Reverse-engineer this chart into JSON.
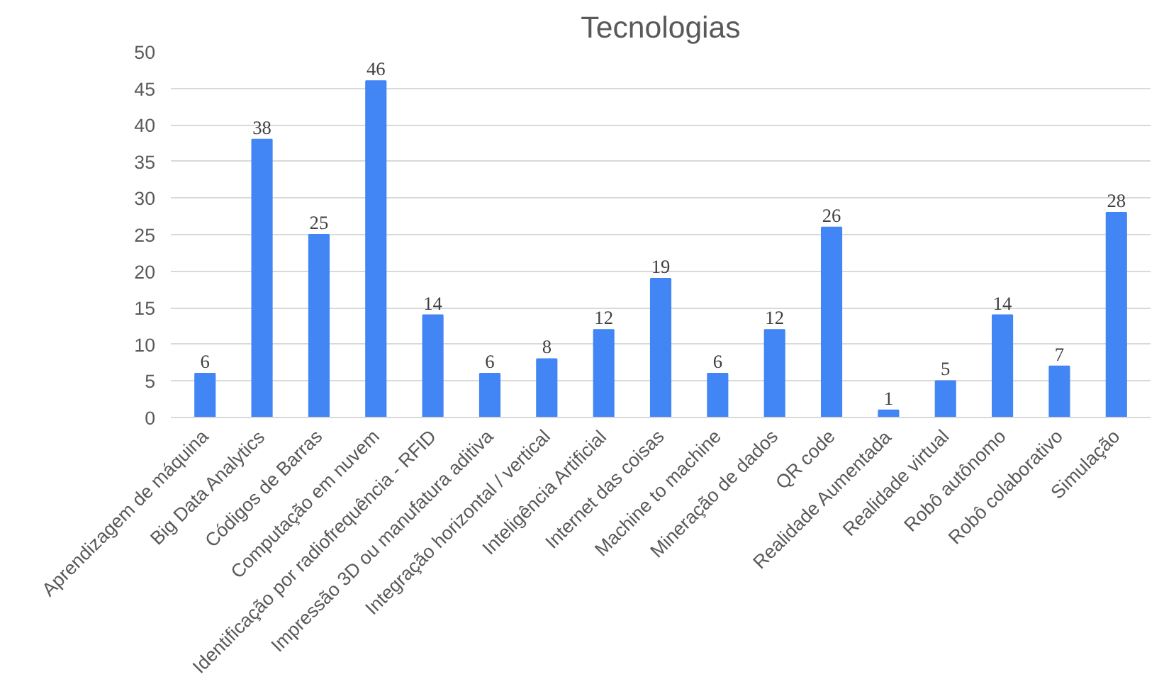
{
  "chart_data": {
    "type": "bar",
    "title": "Tecnologias",
    "categories": [
      "Aprendizagem de máquina",
      "Big Data Analytics",
      "Códigos de Barras",
      "Computação em nuvem",
      "Identificação por radiofrequência - RFID",
      "Impressão 3D ou manufatura aditiva",
      "Integração horizontal / vertical",
      "Inteligência Artificial",
      "Internet das coisas",
      "Machine to machine",
      "Mineração de dados",
      "QR code",
      "Realidade Aumentada",
      "Realidade virtual",
      "Robô autônomo",
      "Robô colaborativo",
      "Simulação"
    ],
    "values": [
      6,
      38,
      25,
      46,
      14,
      6,
      8,
      12,
      19,
      6,
      12,
      26,
      1,
      5,
      14,
      7,
      28
    ],
    "color": "#4285f4",
    "ylim": [
      0,
      50
    ],
    "yticks": [
      0,
      5,
      10,
      15,
      20,
      25,
      30,
      35,
      40,
      45,
      50
    ],
    "grid": "y",
    "data_labels": true
  }
}
